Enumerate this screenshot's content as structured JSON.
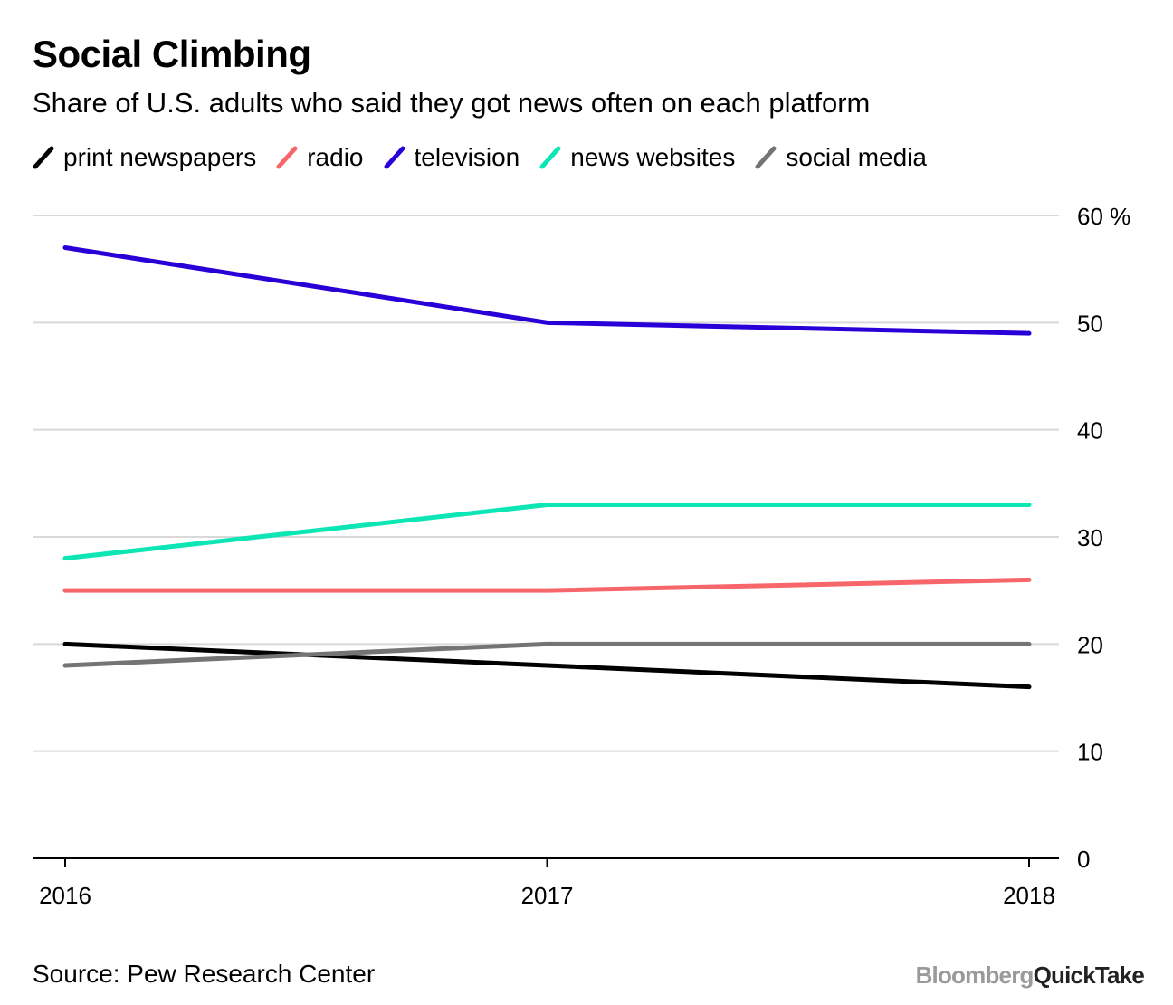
{
  "title": "Social Climbing",
  "subtitle": "Share of U.S. adults who said they got news often on each platform",
  "source": "Source: Pew Research Center",
  "brand": {
    "part1": "Bloomberg",
    "part2": "QuickTake"
  },
  "chart_data": {
    "type": "line",
    "title": "Social Climbing",
    "subtitle": "Share of U.S. adults who said they got news often on each platform",
    "xlabel": "",
    "ylabel": "",
    "x": [
      "2016",
      "2017",
      "2018"
    ],
    "ylim": [
      0,
      60
    ],
    "yticks": [
      0,
      10,
      20,
      30,
      40,
      50,
      60
    ],
    "ytick_labels": [
      "0",
      "10",
      "20",
      "30",
      "40",
      "50",
      "60 %"
    ],
    "grid": true,
    "legend_position": "top-left",
    "series": [
      {
        "name": "print newspapers",
        "color": "#000000",
        "values": [
          20,
          18,
          16
        ]
      },
      {
        "name": "radio",
        "color": "#f7666a",
        "values": [
          25,
          25,
          26
        ]
      },
      {
        "name": "television",
        "color": "#2800d7",
        "values": [
          57,
          50,
          49
        ]
      },
      {
        "name": "news websites",
        "color": "#0ce5b4",
        "values": [
          28,
          33,
          33
        ]
      },
      {
        "name": "social media",
        "color": "#747474",
        "values": [
          18,
          20,
          20
        ]
      }
    ]
  }
}
